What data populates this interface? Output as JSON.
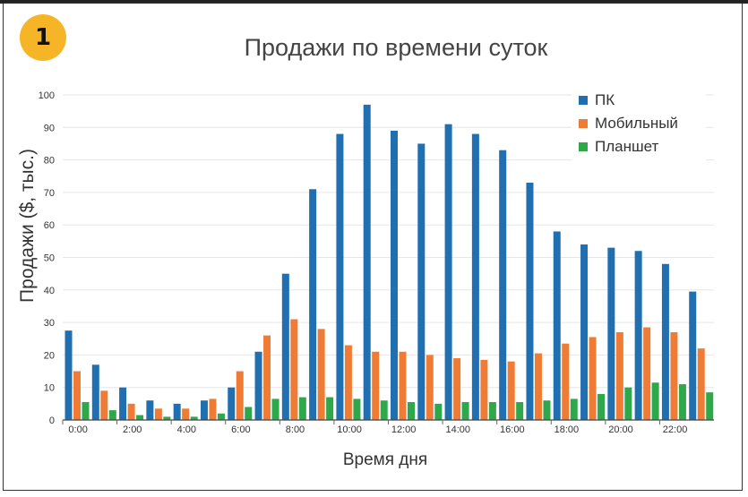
{
  "badge": "1",
  "chart_data": {
    "type": "bar",
    "title": "Продажи по времени суток",
    "xlabel": "Время дня",
    "ylabel": "Продажи ($, тыс.)",
    "ylim": [
      0,
      100
    ],
    "yticks": [
      0,
      10,
      20,
      30,
      40,
      50,
      60,
      70,
      80,
      90,
      100
    ],
    "grid": true,
    "legend_position": "top-right",
    "categories": [
      "0:00",
      "1:00",
      "2:00",
      "3:00",
      "4:00",
      "5:00",
      "6:00",
      "7:00",
      "8:00",
      "9:00",
      "10:00",
      "11:00",
      "12:00",
      "13:00",
      "14:00",
      "15:00",
      "16:00",
      "17:00",
      "18:00",
      "19:00",
      "20:00",
      "21:00",
      "22:00",
      "23:00"
    ],
    "tick_labels": [
      "0:00",
      "2:00",
      "4:00",
      "6:00",
      "8:00",
      "10:00",
      "12:00",
      "14:00",
      "16:00",
      "18:00",
      "20:00",
      "22:00"
    ],
    "series": [
      {
        "name": "ПК",
        "color": "#1f6fb1",
        "values": [
          27.5,
          17,
          10,
          6,
          5,
          6,
          10,
          21,
          45,
          71,
          88,
          97,
          89,
          85,
          91,
          88,
          83,
          73,
          58,
          54,
          53,
          52,
          48,
          39.5
        ]
      },
      {
        "name": "Мобильный",
        "color": "#f07b35",
        "values": [
          15,
          9,
          5,
          3.5,
          3.5,
          6.5,
          15,
          26,
          31,
          28,
          23,
          21,
          21,
          20,
          19,
          18.5,
          18,
          20.5,
          23.5,
          25.5,
          27,
          28.5,
          27,
          22
        ]
      },
      {
        "name": "Планшет",
        "color": "#2ea84a",
        "values": [
          5.5,
          3,
          1.5,
          1,
          1,
          2,
          4,
          6.5,
          7,
          7,
          6.5,
          6,
          5.5,
          5,
          5.5,
          5.5,
          5.5,
          6,
          6.5,
          8,
          10,
          11.5,
          11,
          8.5
        ]
      }
    ]
  }
}
